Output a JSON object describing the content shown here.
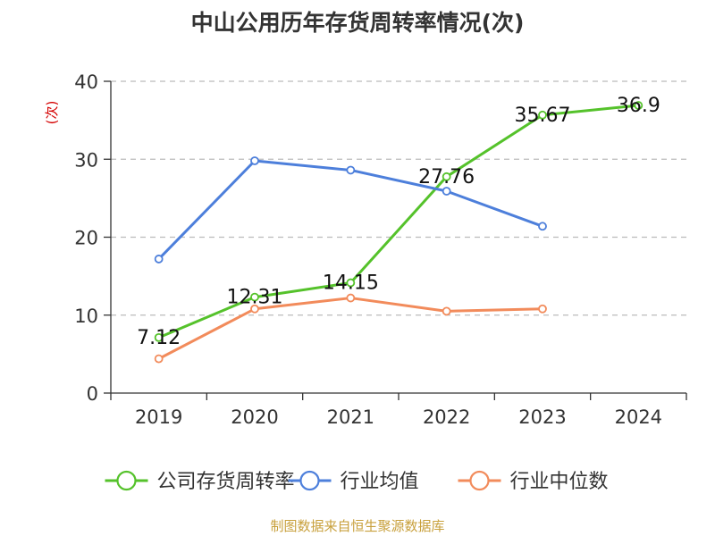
{
  "colors": {
    "company": "#55c22b",
    "industry_avg": "#4d7fdb",
    "industry_median": "#f28b5b",
    "grid": "#bbbbbb",
    "axis": "#333333",
    "unit_label": "#d40000",
    "source": "#c8a03c"
  },
  "chart_data": {
    "type": "line",
    "title": "中山公用历年存货周转率情况(次)",
    "ylabel": "(次)",
    "xlabel": "",
    "categories": [
      "2019",
      "2020",
      "2021",
      "2022",
      "2023",
      "2024"
    ],
    "ylim": [
      0,
      40
    ],
    "yticks": [
      0,
      10,
      20,
      30,
      40
    ],
    "grid": true,
    "legend_position": "bottom",
    "series": [
      {
        "name": "公司存货周转率",
        "values": [
          7.12,
          12.31,
          14.15,
          27.76,
          35.67,
          36.9
        ],
        "labels": [
          "7.12",
          "12.31",
          "14.15",
          "27.76",
          "35.67",
          "36.9"
        ],
        "color_key": "company"
      },
      {
        "name": "行业均值",
        "values": [
          17.2,
          29.8,
          28.6,
          25.9,
          21.4,
          null
        ],
        "color_key": "industry_avg"
      },
      {
        "name": "行业中位数",
        "values": [
          4.4,
          10.8,
          12.2,
          10.5,
          10.8,
          null
        ],
        "color_key": "industry_median"
      }
    ]
  },
  "footer": {
    "source": "制图数据来自恒生聚源数据库"
  }
}
